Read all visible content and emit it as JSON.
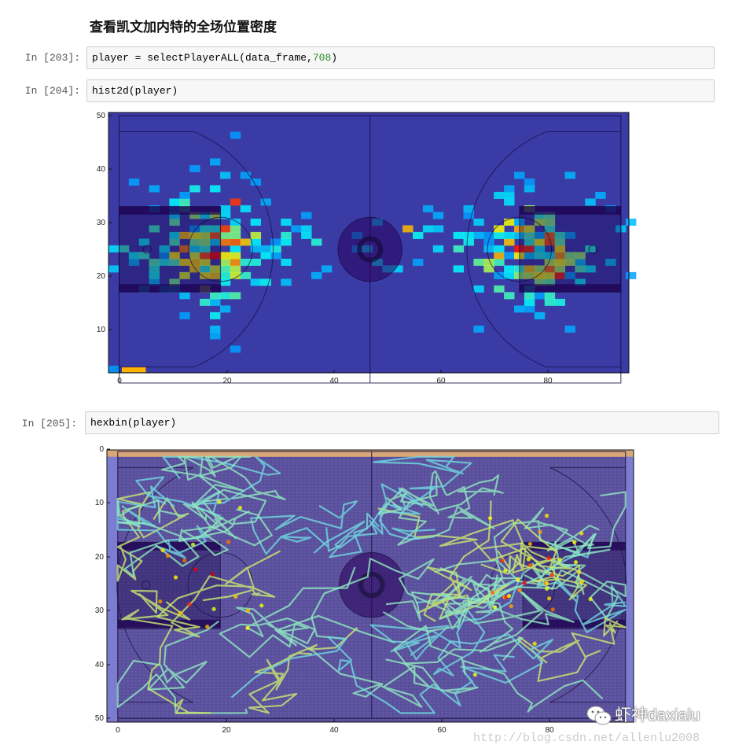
{
  "heading": "查看凯文加内特的全场位置密度",
  "cells": [
    {
      "prompt": "In  [203]:",
      "code_prefix": "player = selectPlayerALL(data_frame,",
      "code_number": "708",
      "code_suffix": ")"
    },
    {
      "prompt": "In  [204]:",
      "code": "hist2d(player)"
    },
    {
      "prompt": "In  [205]:",
      "code": "hexbin(player)"
    }
  ],
  "chart_data": [
    {
      "type": "heatmap",
      "subtype": "hist2d",
      "xticks": [
        "0",
        "20",
        "40",
        "60",
        "80"
      ],
      "yticks": [
        "50",
        "40",
        "30",
        "20",
        "10"
      ],
      "xlim": [
        -2,
        95.5
      ],
      "ylim": [
        1.9,
        50.6
      ],
      "colormap": "jet",
      "background": "#3b3ba6"
    },
    {
      "type": "heatmap",
      "subtype": "hexbin",
      "xticks": [
        "0",
        "20",
        "40",
        "60",
        "80"
      ],
      "yticks": [
        "0",
        "10",
        "20",
        "30",
        "40",
        "50"
      ],
      "xlim": [
        -2,
        95.5
      ],
      "ylim": [
        50.7,
        -0.3
      ],
      "y_inverted": true,
      "colormap": "jet",
      "background": "#5a4f9a"
    }
  ],
  "watermark": {
    "account": "虾神daxialu",
    "url": "http://blog.csdn.net/allenlu2008",
    "icon": "wechat-icon"
  }
}
